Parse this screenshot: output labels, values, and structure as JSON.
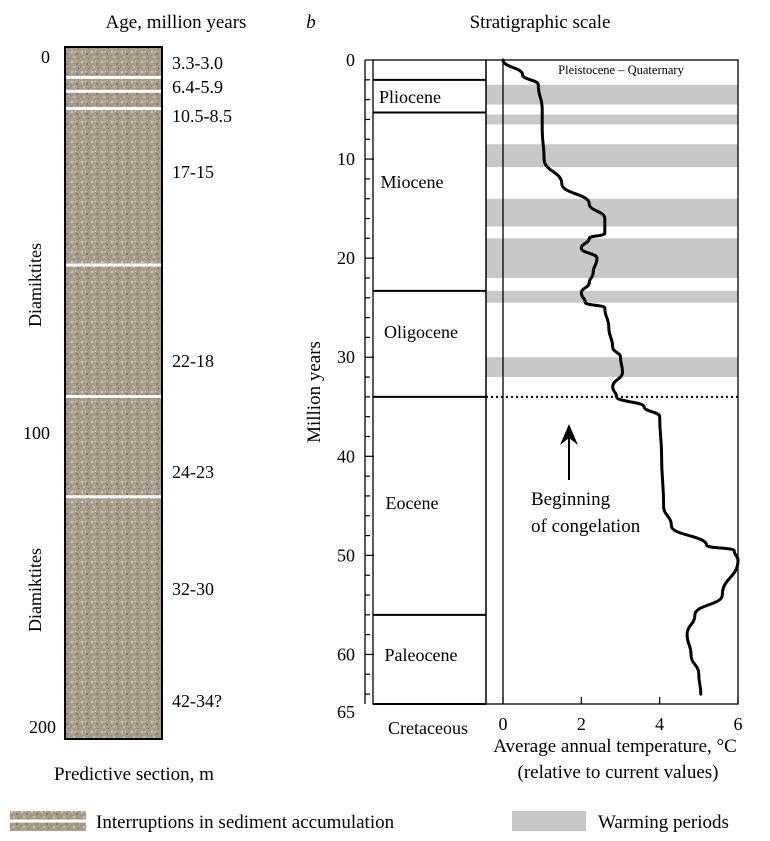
{
  "panel_a": {
    "title": "Age, million years",
    "depth_ticks": [
      "0",
      "100",
      "200"
    ],
    "age_labels": [
      "3.3-3.0",
      "6.4-5.9",
      "10.5-8.5",
      "17-15",
      "22-18",
      "24-23",
      "32-30",
      "42-34?"
    ],
    "side_labels": [
      "Diamiktites",
      "Diamiktites"
    ],
    "xlabel": "Predictive section, m"
  },
  "panel_b": {
    "letter": "b",
    "title": "Stratigraphic scale",
    "ylabel": "Million years",
    "xlabel_line1": "Average annual temperature, °C",
    "xlabel_line2": "(relative to current values)",
    "top_label": "Pleistocene – Quaternary",
    "epochs": [
      "Pliocene",
      "Miocene",
      "Oligocene",
      "Eocene",
      "Paleocene",
      "Cretaceous"
    ],
    "y_ticks": [
      "0",
      "10",
      "20",
      "30",
      "40",
      "50",
      "60",
      "65"
    ],
    "x_ticks": [
      "0",
      "2",
      "4",
      "6"
    ],
    "annotation_line1": "Beginning",
    "annotation_line2": "of congelation"
  },
  "legend": {
    "sediment": "Interruptions in sediment accumulation",
    "warming": "Warming periods"
  },
  "colors": {
    "warming_band": "#c8c8c8",
    "sediment_fill": "#a89c8c",
    "axis": "#000000"
  },
  "chart_data": {
    "type": "line",
    "title": "Stratigraphic scale",
    "xlabel": "Average annual temperature, °C (relative to current values)",
    "ylabel": "Million years",
    "xlim": [
      0,
      6
    ],
    "ylim": [
      0,
      65
    ],
    "y_inverted": true,
    "series": [
      {
        "x": [
          0,
          0.5,
          0.9,
          1.0,
          1.0,
          1.05,
          1.5,
          2.2,
          2.6,
          2.6,
          2.2,
          2.0,
          2.4,
          2.3,
          2.2,
          2.0,
          2.1,
          2.6,
          2.7,
          2.8,
          3.0,
          3.05,
          2.8,
          2.9,
          3.6,
          4.0,
          4.05,
          4.1,
          4.3,
          5.2,
          5.9,
          6.0,
          5.6,
          4.9,
          4.7,
          4.8,
          5.0,
          5.05
        ],
        "y": [
          0,
          1.5,
          2.5,
          5.0,
          7.0,
          10.0,
          12.5,
          14.5,
          16.0,
          17.5,
          18.0,
          19.0,
          20.0,
          21.5,
          22.5,
          23.5,
          24.5,
          25.0,
          27.0,
          29.0,
          30.0,
          31.5,
          33.0,
          34.0,
          35.0,
          36.0,
          40.0,
          45.0,
          47.0,
          49.0,
          49.5,
          50.5,
          54.0,
          56.0,
          58.0,
          60.0,
          62.0,
          64.0
        ]
      }
    ],
    "warming_periods": [
      [
        2.5,
        4.5
      ],
      [
        5.5,
        6.5
      ],
      [
        8.5,
        10.8
      ],
      [
        14,
        16.8
      ],
      [
        18,
        22
      ],
      [
        23.3,
        24.5
      ],
      [
        30,
        32
      ]
    ],
    "congelation_onset": 34,
    "epoch_boundaries": [
      2,
      5.3,
      23.3,
      34,
      56,
      65
    ],
    "sediment_interruptions": [
      {
        "age": "3.3-3.0",
        "depth": 3
      },
      {
        "age": "6.4-5.9",
        "depth": 7
      },
      {
        "age": "10.5-8.5",
        "depth": 12
      },
      {
        "age": "22-18",
        "depth": 63
      },
      {
        "age": "24-23",
        "depth": 101
      },
      {
        "age": "32-30",
        "depth": 130
      }
    ],
    "section_depth_range": [
      0,
      200
    ]
  }
}
